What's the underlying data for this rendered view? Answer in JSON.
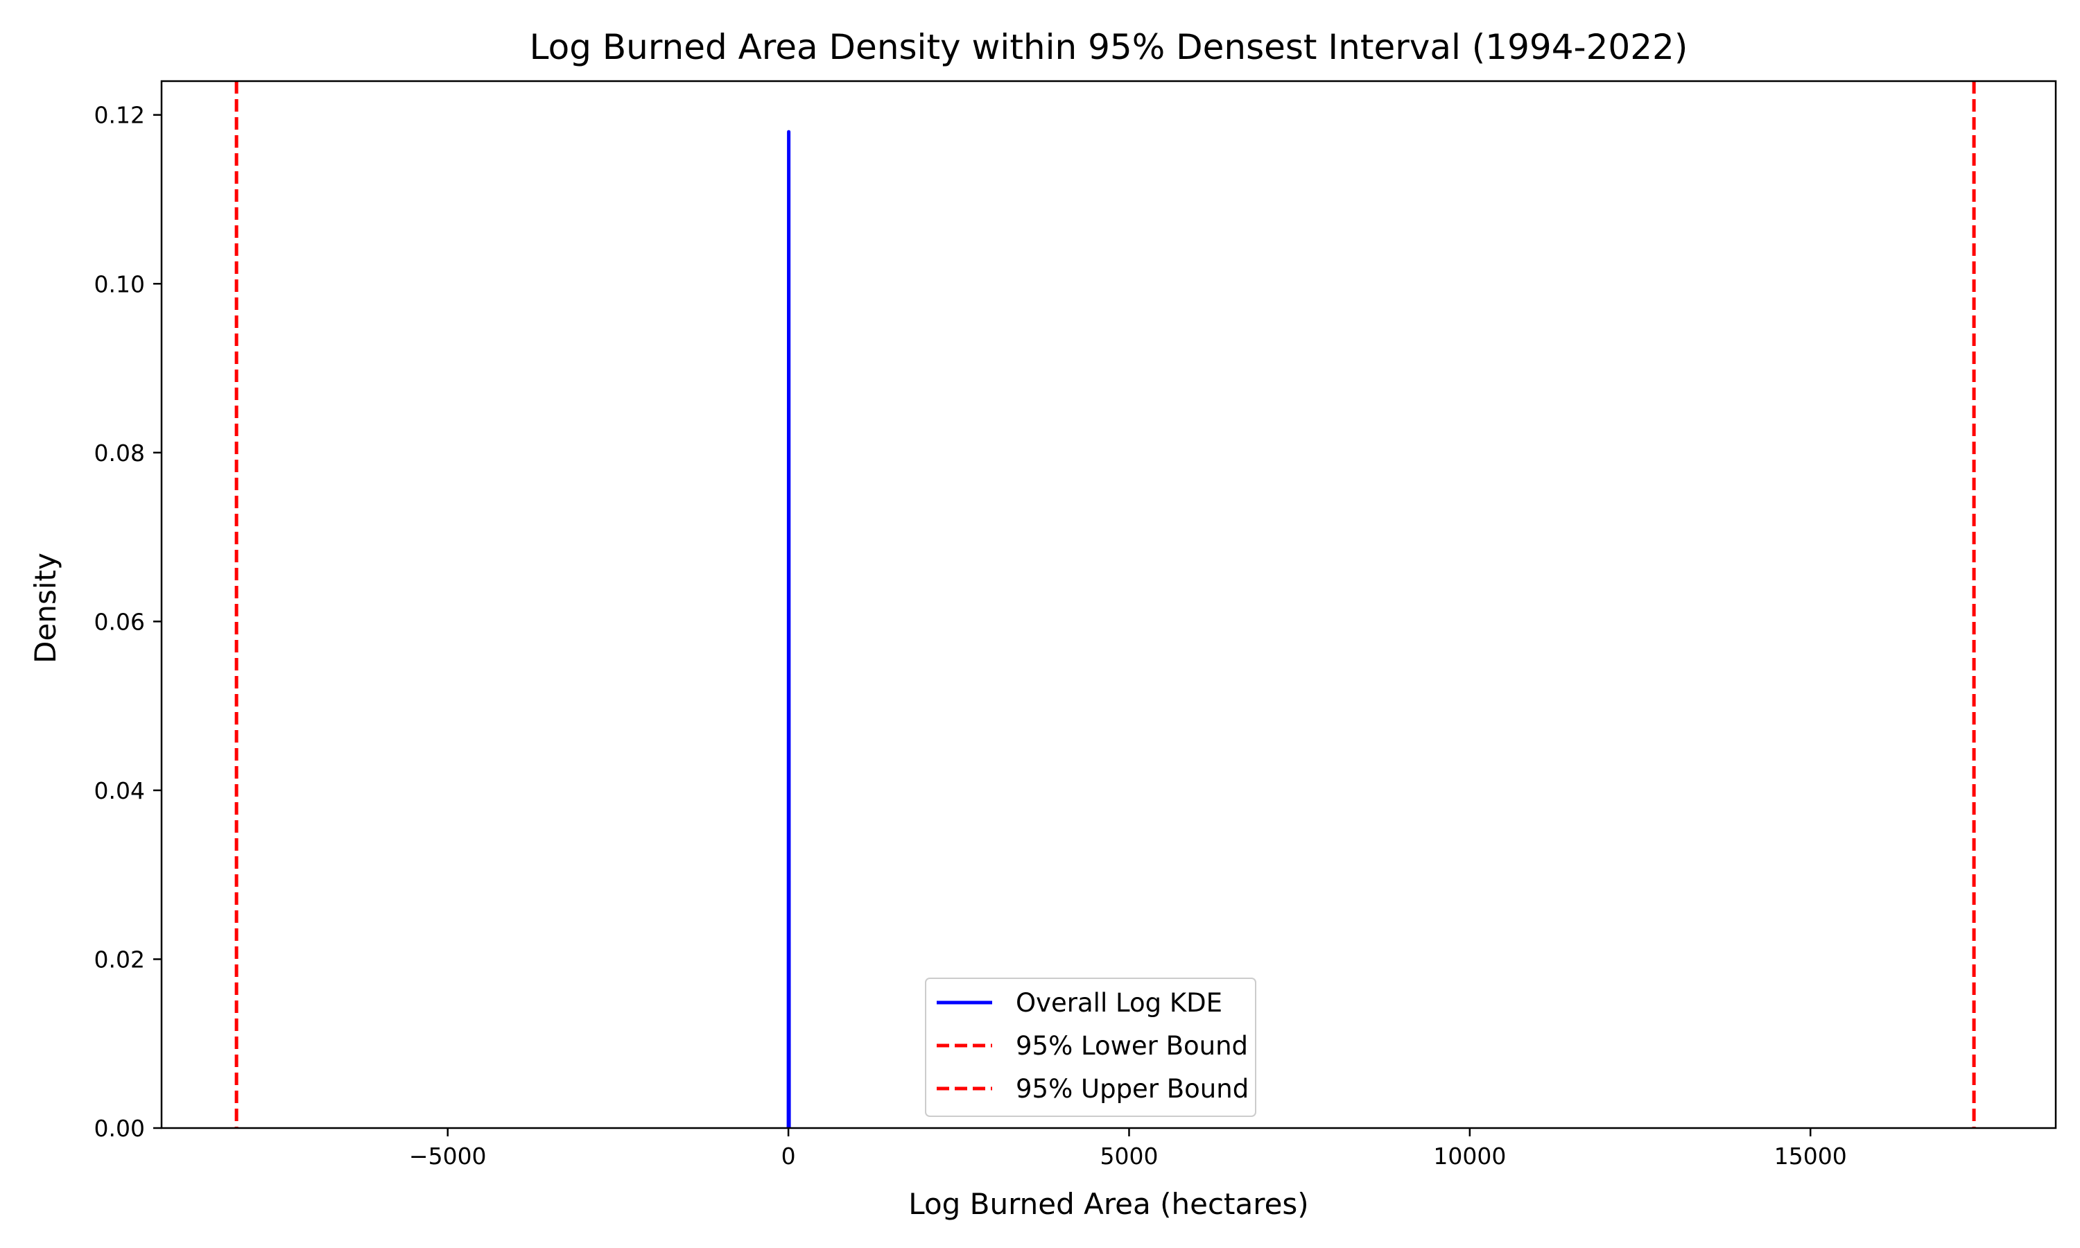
{
  "chart_data": {
    "type": "line",
    "title": "Log Burned Area Density within 95% Densest Interval (1994-2022)",
    "xlabel": "Log Burned Area (hectares)",
    "ylabel": "Density",
    "xlim": [
      -9200,
      18600
    ],
    "ylim": [
      0.0,
      0.124
    ],
    "x_ticks": [
      -5000,
      0,
      5000,
      10000,
      15000
    ],
    "x_tick_labels": [
      "−5000",
      "0",
      "5000",
      "10000",
      "15000"
    ],
    "y_ticks": [
      0.0,
      0.02,
      0.04,
      0.06,
      0.08,
      0.1,
      0.12
    ],
    "y_tick_labels": [
      "0.00",
      "0.02",
      "0.04",
      "0.06",
      "0.08",
      "0.10",
      "0.12"
    ],
    "grid": false,
    "legend_position": "bottom-center",
    "series": [
      {
        "name": "Overall Log KDE",
        "style": "solid",
        "color": "#0000ff",
        "x": [
          0,
          5,
          10
        ],
        "y": [
          0.0,
          0.118,
          0.0
        ]
      },
      {
        "name": "95% Lower Bound",
        "style": "dashed",
        "color": "#ff0000",
        "vline_x": -8100
      },
      {
        "name": "95% Upper Bound",
        "style": "dashed",
        "color": "#ff0000",
        "vline_x": 17400
      }
    ]
  }
}
